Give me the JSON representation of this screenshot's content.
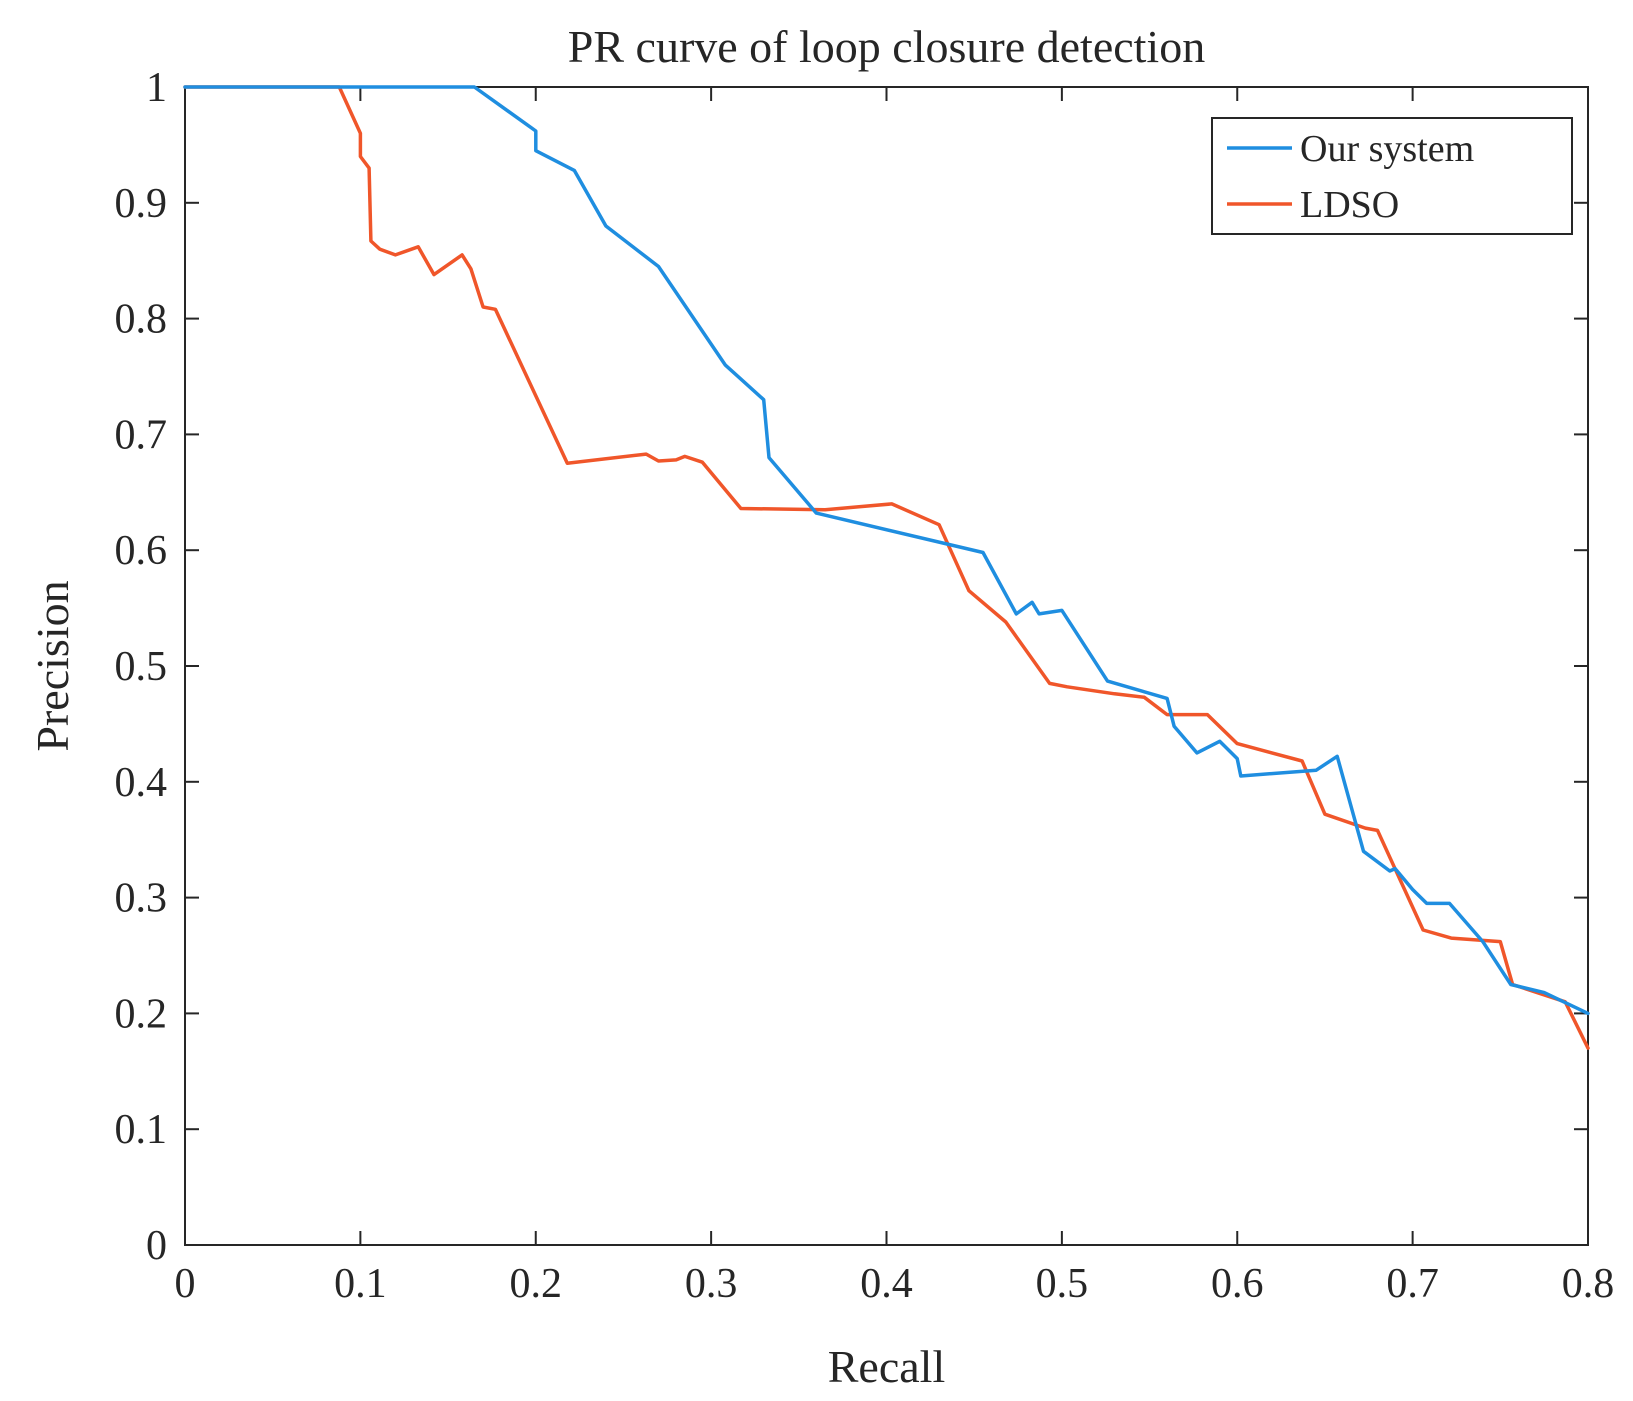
{
  "chart_data": {
    "type": "line",
    "title": "PR curve of loop closure detection",
    "xlabel": "Recall",
    "ylabel": "Precision",
    "xlim": [
      0,
      0.8
    ],
    "ylim": [
      0,
      1
    ],
    "grid": false,
    "legend_position": "top-right",
    "x_ticks": [
      "0",
      "0.1",
      "0.2",
      "0.3",
      "0.4",
      "0.5",
      "0.6",
      "0.7",
      "0.8"
    ],
    "y_ticks": [
      "0",
      "0.1",
      "0.2",
      "0.3",
      "0.4",
      "0.5",
      "0.6",
      "0.7",
      "0.8",
      "0.9",
      "1"
    ],
    "series": [
      {
        "name": "Our system",
        "color": "#1f8ee0",
        "x": [
          0,
          0.165,
          0.2,
          0.2,
          0.222,
          0.24,
          0.27,
          0.308,
          0.33,
          0.333,
          0.36,
          0.455,
          0.474,
          0.483,
          0.487,
          0.5,
          0.526,
          0.56,
          0.564,
          0.577,
          0.59,
          0.6,
          0.602,
          0.645,
          0.657,
          0.672,
          0.687,
          0.69,
          0.7,
          0.708,
          0.721,
          0.74,
          0.756,
          0.775,
          0.8
        ],
        "y": [
          1,
          1,
          0.962,
          0.945,
          0.928,
          0.88,
          0.845,
          0.76,
          0.73,
          0.68,
          0.632,
          0.598,
          0.545,
          0.555,
          0.545,
          0.548,
          0.487,
          0.472,
          0.448,
          0.425,
          0.435,
          0.42,
          0.405,
          0.41,
          0.422,
          0.34,
          0.323,
          0.325,
          0.307,
          0.295,
          0.295,
          0.262,
          0.225,
          0.218,
          0.2
        ]
      },
      {
        "name": "LDSO",
        "color": "#f0562a",
        "x": [
          0,
          0.088,
          0.1,
          0.1,
          0.105,
          0.106,
          0.111,
          0.12,
          0.133,
          0.142,
          0.158,
          0.163,
          0.17,
          0.177,
          0.218,
          0.263,
          0.27,
          0.28,
          0.285,
          0.295,
          0.317,
          0.365,
          0.403,
          0.43,
          0.447,
          0.468,
          0.493,
          0.503,
          0.53,
          0.547,
          0.56,
          0.583,
          0.6,
          0.637,
          0.65,
          0.673,
          0.68,
          0.706,
          0.722,
          0.75,
          0.757,
          0.787,
          0.8
        ],
        "y": [
          1,
          1,
          0.96,
          0.94,
          0.93,
          0.867,
          0.86,
          0.855,
          0.862,
          0.838,
          0.855,
          0.843,
          0.81,
          0.808,
          0.675,
          0.683,
          0.677,
          0.678,
          0.681,
          0.676,
          0.636,
          0.635,
          0.64,
          0.622,
          0.565,
          0.538,
          0.485,
          0.482,
          0.476,
          0.473,
          0.458,
          0.458,
          0.433,
          0.418,
          0.372,
          0.36,
          0.358,
          0.272,
          0.265,
          0.262,
          0.225,
          0.21,
          0.17
        ]
      }
    ]
  }
}
